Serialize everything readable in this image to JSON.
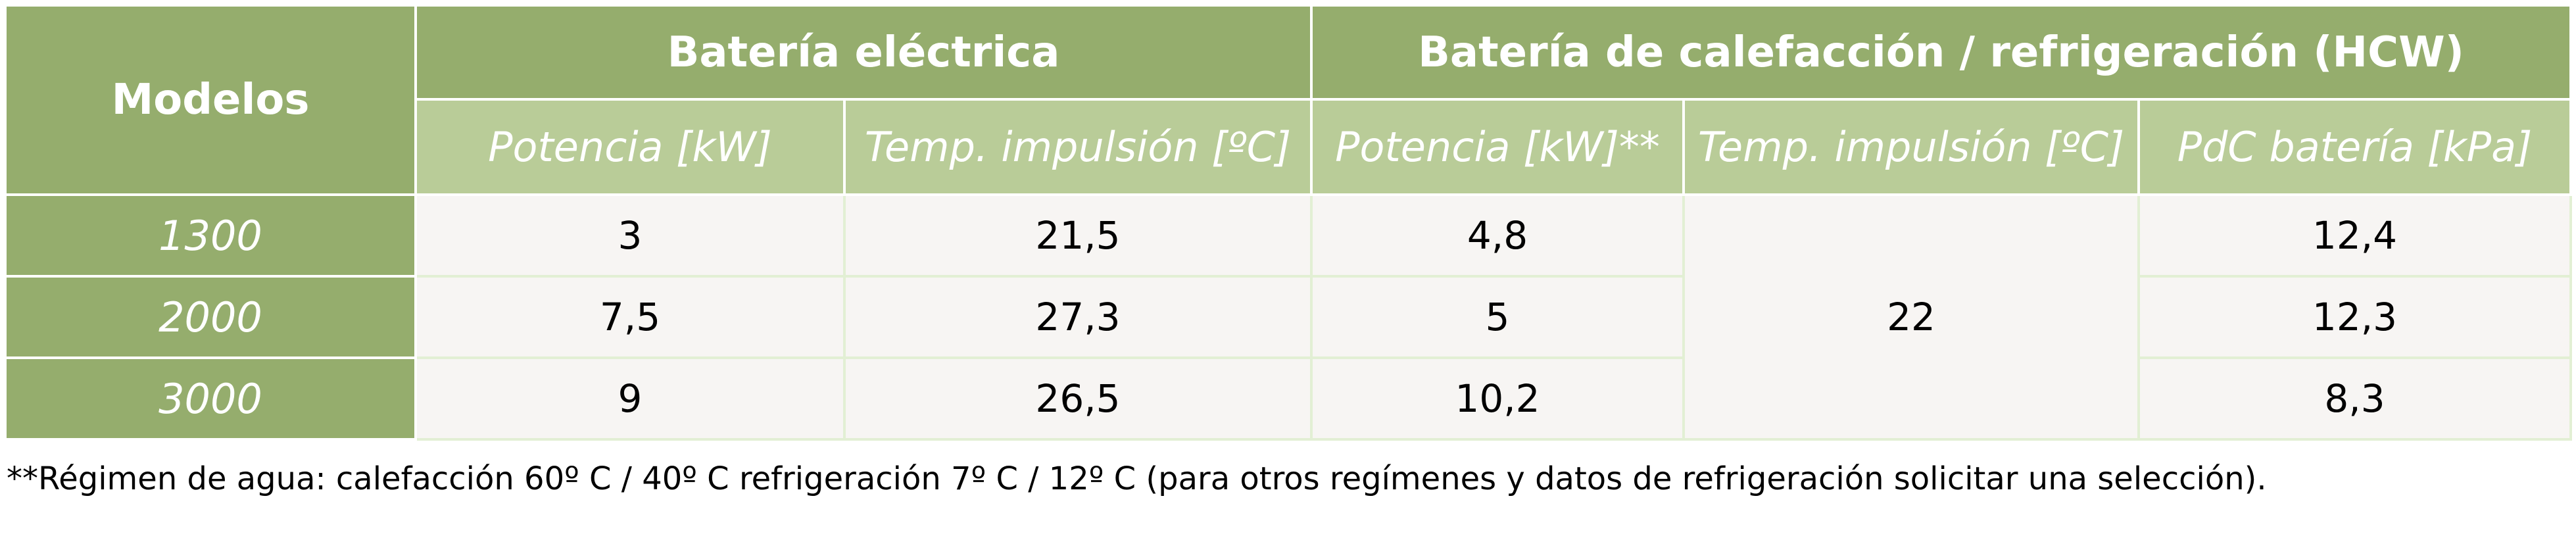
{
  "table": {
    "model_header": "Modelos",
    "group_headers": {
      "electric": "Batería eléctrica",
      "hcw": "Batería de calefacción / refrigeración (HCW)"
    },
    "sub_headers": {
      "electric_power": "Potencia [kW]",
      "electric_temp": "Temp. impulsión [ºC]",
      "hcw_power": "Potencia [kW]**",
      "hcw_temp": "Temp. impulsión [ºC]",
      "hcw_pdc": "PdC batería [kPa]"
    },
    "rows": [
      {
        "model": "1300",
        "electric_power": "3",
        "electric_temp": "21,5",
        "hcw_power": "4,8",
        "hcw_pdc": "12,4"
      },
      {
        "model": "2000",
        "electric_power": "7,5",
        "electric_temp": "27,3",
        "hcw_power": "5",
        "hcw_pdc": "12,3"
      },
      {
        "model": "3000",
        "electric_power": "9",
        "electric_temp": "26,5",
        "hcw_power": "10,2",
        "hcw_pdc": "8,3"
      }
    ],
    "hcw_temp_merged": "22"
  },
  "footnote": "**Régimen de agua: calefacción 60º C / 40º C refrigeración 7º C / 12º C (para otros regímenes y datos de refrigeración solicitar una selección).",
  "colors": {
    "header_dark": "#95ad6d",
    "header_light": "#b9cc98",
    "cell_background": "#f7f5f3",
    "cell_border": "#e2efd4"
  }
}
